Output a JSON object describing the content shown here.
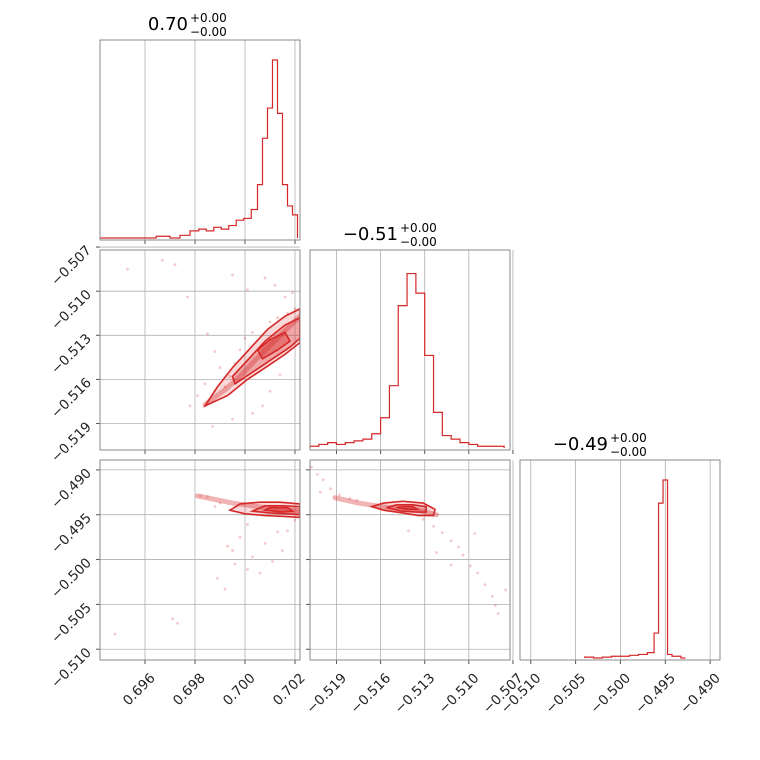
{
  "chart_data": {
    "type": "corner",
    "color": "#d62728",
    "parameters": [
      {
        "title": {
          "value": "0.70",
          "plus": "+0.00",
          "minus": "−0.00"
        },
        "range": [
          0.6942,
          0.7022
        ]
      },
      {
        "title": {
          "value": "−0.51",
          "plus": "+0.00",
          "minus": "−0.00"
        },
        "range": [
          -0.5208,
          -0.5072
        ]
      },
      {
        "title": {
          "value": "−0.49",
          "plus": "+0.00",
          "minus": "−0.00"
        },
        "range": [
          -0.5112,
          -0.4889
        ]
      }
    ],
    "x_ticks": [
      {
        "values": [
          0.696,
          0.698,
          0.7,
          0.702
        ],
        "labels": [
          "0.696",
          "0.698",
          "0.700",
          "0.702"
        ]
      },
      {
        "values": [
          -0.519,
          -0.516,
          -0.513,
          -0.51,
          -0.507
        ],
        "labels": [
          "−0.519",
          "−0.516",
          "−0.513",
          "−0.510",
          "−0.507"
        ]
      },
      {
        "values": [
          -0.51,
          -0.505,
          -0.5,
          -0.495,
          -0.49
        ],
        "labels": [
          "−0.510",
          "−0.505",
          "−0.500",
          "−0.495",
          "−0.490"
        ]
      }
    ],
    "y_ticks": [
      null,
      {
        "values": [
          -0.507,
          -0.51,
          -0.513,
          -0.516,
          -0.519
        ],
        "labels": [
          "−0.507",
          "−0.510",
          "−0.513",
          "−0.516",
          "−0.519"
        ]
      },
      {
        "values": [
          -0.49,
          -0.495,
          -0.5,
          -0.505,
          -0.51
        ],
        "labels": [
          "−0.490",
          "−0.495",
          "−0.500",
          "−0.505",
          "−0.510"
        ]
      }
    ],
    "histograms": [
      {
        "x": [
          0.6945,
          0.6953,
          0.6961,
          0.6968,
          0.6972,
          0.6976,
          0.698,
          0.6983,
          0.6986,
          0.6989,
          0.6992,
          0.6995,
          0.6998,
          0.7001,
          0.7004,
          0.7006,
          0.7008,
          0.701,
          0.7012,
          0.7014,
          0.7016,
          0.7018,
          0.702
        ],
        "density": [
          0.0,
          0.0,
          0.0,
          0.01,
          0.0,
          0.015,
          0.04,
          0.05,
          0.04,
          0.06,
          0.05,
          0.07,
          0.1,
          0.11,
          0.16,
          0.3,
          0.56,
          0.73,
          1.0,
          0.7,
          0.3,
          0.18,
          0.13
        ]
      },
      {
        "x": [
          -0.5205,
          -0.5199,
          -0.5193,
          -0.5187,
          -0.5181,
          -0.5175,
          -0.5169,
          -0.5163,
          -0.5157,
          -0.5151,
          -0.5145,
          -0.5139,
          -0.5133,
          -0.5127,
          -0.5121,
          -0.5115,
          -0.5109,
          -0.5103,
          -0.5097,
          -0.5091,
          -0.5085,
          -0.5079
        ],
        "density": [
          0.01,
          0.02,
          0.03,
          0.02,
          0.03,
          0.04,
          0.05,
          0.08,
          0.17,
          0.35,
          0.8,
          0.98,
          0.87,
          0.52,
          0.2,
          0.07,
          0.05,
          0.03,
          0.02,
          0.01,
          0.01,
          0.01
        ]
      },
      {
        "x": [
          -0.5035,
          -0.5025,
          -0.5015,
          -0.5005,
          -0.4995,
          -0.4985,
          -0.4975,
          -0.4965,
          -0.496,
          -0.4955,
          -0.495,
          -0.4945,
          -0.494,
          -0.4935,
          -0.493
        ],
        "density": [
          0.005,
          0.0,
          0.005,
          0.01,
          0.01,
          0.015,
          0.02,
          0.03,
          0.14,
          0.87,
          1.0,
          0.02,
          0.01,
          0.01,
          0.0
        ]
      }
    ],
    "scatter": [
      {
        "x_param": 0,
        "y_param": 1,
        "points": [
          [
            0.6953,
            -0.5085
          ],
          [
            0.6967,
            -0.5079
          ],
          [
            0.6972,
            -0.5082
          ],
          [
            0.6977,
            -0.5104
          ],
          [
            0.6995,
            -0.5089
          ],
          [
            0.7001,
            -0.5099
          ],
          [
            0.7008,
            -0.5091
          ],
          [
            0.7012,
            -0.5096
          ],
          [
            0.7016,
            -0.5104
          ],
          [
            0.7019,
            -0.5101
          ],
          [
            0.6985,
            -0.5129
          ],
          [
            0.6988,
            -0.5141
          ],
          [
            0.699,
            -0.5152
          ],
          [
            0.6992,
            -0.5165
          ],
          [
            0.6994,
            -0.5158
          ],
          [
            0.6996,
            -0.5149
          ],
          [
            0.6998,
            -0.514
          ],
          [
            0.7,
            -0.5132
          ],
          [
            0.7003,
            -0.5128
          ],
          [
            0.7006,
            -0.5139
          ],
          [
            0.701,
            -0.5121
          ],
          [
            0.7013,
            -0.5118
          ],
          [
            0.7017,
            -0.5115
          ],
          [
            0.702,
            -0.5112
          ],
          [
            0.6978,
            -0.5178
          ],
          [
            0.6981,
            -0.5171
          ],
          [
            0.6984,
            -0.5163
          ],
          [
            0.6987,
            -0.5192
          ],
          [
            0.6995,
            -0.5187
          ],
          [
            0.7003,
            -0.5183
          ],
          [
            0.701,
            -0.5168
          ],
          [
            0.7014,
            -0.5157
          ],
          [
            0.7007,
            -0.5178
          ]
        ],
        "ridge": [
          [
            0.6984,
            -0.5177
          ],
          [
            0.6992,
            -0.5167
          ],
          [
            0.6998,
            -0.5158
          ],
          [
            0.7004,
            -0.5147
          ],
          [
            0.701,
            -0.5137
          ],
          [
            0.7016,
            -0.5127
          ],
          [
            0.7022,
            -0.5117
          ]
        ],
        "contours": [
          [
            [
              0.6984,
              -0.5178
            ],
            [
              0.6993,
              -0.5171
            ],
            [
              0.7001,
              -0.516
            ],
            [
              0.7009,
              -0.5151
            ],
            [
              0.7016,
              -0.5143
            ],
            [
              0.7022,
              -0.5135
            ],
            [
              0.7022,
              -0.5112
            ],
            [
              0.7016,
              -0.5117
            ],
            [
              0.7009,
              -0.5126
            ],
            [
              0.7002,
              -0.5139
            ],
            [
              0.6995,
              -0.5152
            ],
            [
              0.6989,
              -0.5165
            ]
          ],
          [
            [
              0.6996,
              -0.5163
            ],
            [
              0.7004,
              -0.5154
            ],
            [
              0.7011,
              -0.5146
            ],
            [
              0.7018,
              -0.5138
            ],
            [
              0.7022,
              -0.5132
            ],
            [
              0.7022,
              -0.5118
            ],
            [
              0.7016,
              -0.5123
            ],
            [
              0.7008,
              -0.5134
            ],
            [
              0.7001,
              -0.5147
            ],
            [
              0.6995,
              -0.5158
            ]
          ],
          [
            [
              0.7007,
              -0.5146
            ],
            [
              0.7013,
              -0.514
            ],
            [
              0.7018,
              -0.5134
            ],
            [
              0.7016,
              -0.5128
            ],
            [
              0.701,
              -0.5133
            ],
            [
              0.7005,
              -0.514
            ]
          ]
        ]
      },
      {
        "x_param": 0,
        "y_param": 2,
        "points": [
          [
            0.6948,
            -0.5083
          ],
          [
            0.6971,
            -0.5066
          ],
          [
            0.6973,
            -0.5071
          ],
          [
            0.6982,
            -0.4929
          ],
          [
            0.6985,
            -0.493
          ],
          [
            0.6988,
            -0.4941
          ],
          [
            0.699,
            -0.4937
          ],
          [
            0.6993,
            -0.4985
          ],
          [
            0.6995,
            -0.499
          ],
          [
            0.6996,
            -0.5005
          ],
          [
            0.6998,
            -0.4975
          ],
          [
            0.7001,
            -0.4961
          ],
          [
            0.7003,
            -0.4997
          ],
          [
            0.7006,
            -0.5015
          ],
          [
            0.7008,
            -0.4982
          ],
          [
            0.701,
            -0.4944
          ],
          [
            0.7013,
            -0.4969
          ],
          [
            0.7015,
            -0.499
          ],
          [
            0.7017,
            -0.4968
          ],
          [
            0.702,
            -0.4956
          ],
          [
            0.6989,
            -0.5021
          ],
          [
            0.6992,
            -0.5033
          ],
          [
            0.7001,
            -0.5011
          ],
          [
            0.7011,
            -0.5002
          ]
        ],
        "ridge": [
          [
            0.6981,
            -0.4929
          ],
          [
            0.6995,
            -0.4937
          ],
          [
            0.7005,
            -0.4941
          ],
          [
            0.7013,
            -0.4944
          ],
          [
            0.7022,
            -0.4946
          ]
        ],
        "contours": [
          [
            [
              0.6994,
              -0.4945
            ],
            [
              0.7,
              -0.4949
            ],
            [
              0.7008,
              -0.4951
            ],
            [
              0.7016,
              -0.4952
            ],
            [
              0.7022,
              -0.4953
            ],
            [
              0.7022,
              -0.4938
            ],
            [
              0.7014,
              -0.4936
            ],
            [
              0.7006,
              -0.4936
            ],
            [
              0.6998,
              -0.4938
            ]
          ],
          [
            [
              0.7003,
              -0.4946
            ],
            [
              0.701,
              -0.4948
            ],
            [
              0.7017,
              -0.4949
            ],
            [
              0.7022,
              -0.495
            ],
            [
              0.7022,
              -0.4941
            ],
            [
              0.7015,
              -0.494
            ],
            [
              0.7008,
              -0.494
            ]
          ],
          [
            [
              0.7008,
              -0.4945
            ],
            [
              0.7015,
              -0.4947
            ],
            [
              0.7019,
              -0.4946
            ],
            [
              0.7017,
              -0.4942
            ],
            [
              0.701,
              -0.4942
            ]
          ]
        ]
      },
      {
        "x_param": 1,
        "y_param": 2,
        "points": [
          [
            -0.5207,
            -0.4897
          ],
          [
            -0.5203,
            -0.4905
          ],
          [
            -0.5199,
            -0.4911
          ],
          [
            -0.5201,
            -0.4925
          ],
          [
            -0.5194,
            -0.4921
          ],
          [
            -0.5188,
            -0.4928
          ],
          [
            -0.5181,
            -0.4932
          ],
          [
            -0.5176,
            -0.4934
          ],
          [
            -0.5131,
            -0.4955
          ],
          [
            -0.5124,
            -0.4963
          ],
          [
            -0.5118,
            -0.497
          ],
          [
            -0.5112,
            -0.4979
          ],
          [
            -0.5107,
            -0.4986
          ],
          [
            -0.5104,
            -0.4995
          ],
          [
            -0.5099,
            -0.5007
          ],
          [
            -0.5094,
            -0.5015
          ],
          [
            -0.5089,
            -0.5028
          ],
          [
            -0.5084,
            -0.5041
          ],
          [
            -0.5082,
            -0.5051
          ],
          [
            -0.508,
            -0.506
          ],
          [
            -0.5075,
            -0.5034
          ],
          [
            -0.5112,
            -0.5006
          ],
          [
            -0.5122,
            -0.4992
          ],
          [
            -0.5096,
            -0.4971
          ],
          [
            -0.5141,
            -0.4968
          ]
        ],
        "ridge": [
          [
            -0.5191,
            -0.4931
          ],
          [
            -0.5175,
            -0.4937
          ],
          [
            -0.5155,
            -0.4942
          ],
          [
            -0.5135,
            -0.4945
          ],
          [
            -0.5122,
            -0.495
          ]
        ],
        "contours": [
          [
            [
              -0.5166,
              -0.4941
            ],
            [
              -0.5158,
              -0.4945
            ],
            [
              -0.5145,
              -0.4948
            ],
            [
              -0.5134,
              -0.4951
            ],
            [
              -0.5124,
              -0.4951
            ],
            [
              -0.5123,
              -0.4944
            ],
            [
              -0.5131,
              -0.4937
            ],
            [
              -0.5145,
              -0.4935
            ],
            [
              -0.5158,
              -0.4937
            ]
          ],
          [
            [
              -0.5156,
              -0.4942
            ],
            [
              -0.5146,
              -0.4946
            ],
            [
              -0.5136,
              -0.4947
            ],
            [
              -0.5129,
              -0.4947
            ],
            [
              -0.5129,
              -0.4941
            ],
            [
              -0.5138,
              -0.4939
            ],
            [
              -0.5149,
              -0.4939
            ]
          ],
          [
            [
              -0.5149,
              -0.4942
            ],
            [
              -0.5142,
              -0.4944
            ],
            [
              -0.5135,
              -0.4944
            ],
            [
              -0.5138,
              -0.4941
            ],
            [
              -0.5145,
              -0.4941
            ]
          ]
        ]
      }
    ],
    "grid": true
  }
}
